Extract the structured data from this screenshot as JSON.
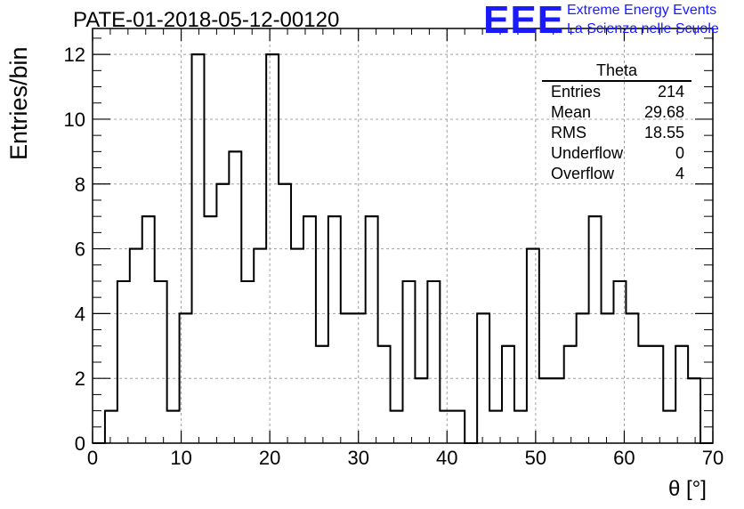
{
  "title": "PATE-01-2018-05-12-00120",
  "logo": {
    "mark": "EEE",
    "line1": "Extreme Energy Events",
    "line2": "La Scienza nelle Scuole",
    "color": "#1a1aff"
  },
  "stats": {
    "name": "Theta",
    "rows": [
      {
        "label": "Entries",
        "value": "214"
      },
      {
        "label": "Mean",
        "value": "29.68"
      },
      {
        "label": "RMS",
        "value": "18.55"
      },
      {
        "label": "Underflow",
        "value": "0"
      },
      {
        "label": "Overflow",
        "value": "4"
      }
    ]
  },
  "chart_data": {
    "type": "bar",
    "style": "step-histogram",
    "title": "PATE-01-2018-05-12-00120",
    "xlabel": "θ [°]",
    "ylabel": "Entries/bin",
    "xlim": [
      0,
      70
    ],
    "ylim": [
      0,
      12.8
    ],
    "bin_width": 1.4,
    "xticks": [
      0,
      10,
      20,
      30,
      40,
      50,
      60,
      70
    ],
    "yticks": [
      0,
      2,
      4,
      6,
      8,
      10,
      12
    ],
    "grid": true,
    "legend": "stats box top-right",
    "line_color": "#000000",
    "grid_color": "#a0a0a0",
    "values": [
      0,
      1,
      5,
      6,
      7,
      5,
      1,
      4,
      12,
      7,
      8,
      9,
      5,
      6,
      12,
      8,
      6,
      7,
      3,
      7,
      4,
      4,
      7,
      3,
      1,
      5,
      2,
      5,
      1,
      1,
      0,
      4,
      1,
      3,
      1,
      6,
      2,
      2,
      3,
      4,
      7,
      4,
      5,
      4,
      3,
      3,
      1,
      3,
      2,
      0
    ]
  }
}
